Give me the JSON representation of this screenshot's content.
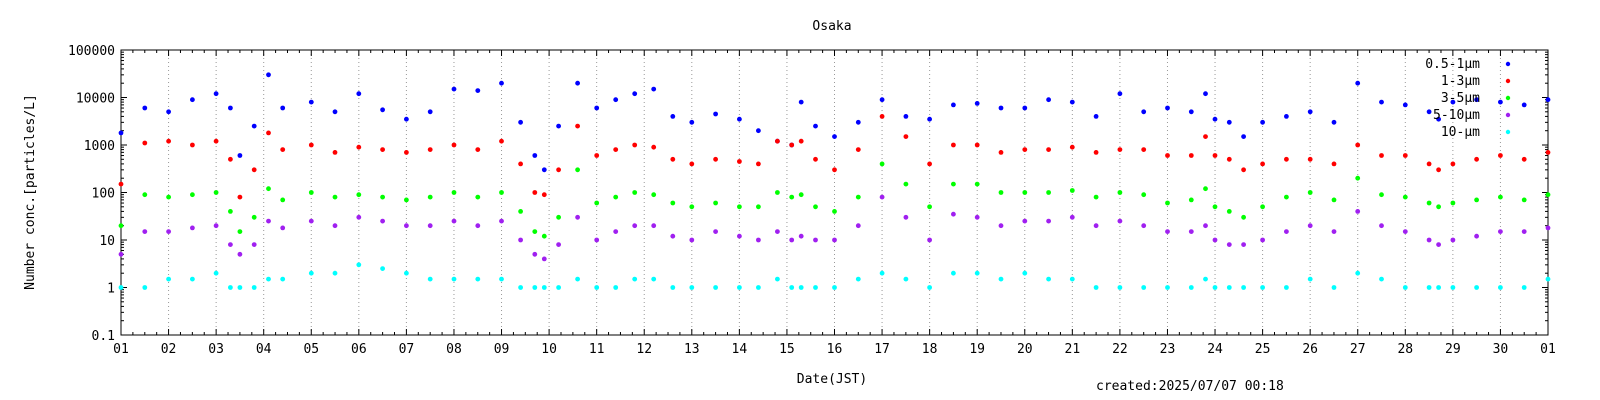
{
  "chart_data": {
    "type": "scatter",
    "title": "Osaka",
    "xlabel": "Date(JST)",
    "ylabel": "Number conc.[particles/L]",
    "created": "created:2025/07/07 00:18",
    "y_scale": "log",
    "ylim": [
      0.1,
      100000
    ],
    "xlim": [
      1,
      31
    ],
    "yticks": [
      {
        "value": 0.1,
        "label": "0.1"
      },
      {
        "value": 1,
        "label": "1"
      },
      {
        "value": 10,
        "label": "10"
      },
      {
        "value": 100,
        "label": "100"
      },
      {
        "value": 1000,
        "label": "1000"
      },
      {
        "value": 10000,
        "label": "10000"
      },
      {
        "value": 100000,
        "label": "100000"
      }
    ],
    "xticks": [
      "01",
      "02",
      "03",
      "04",
      "05",
      "06",
      "07",
      "08",
      "09",
      "10",
      "11",
      "12",
      "13",
      "14",
      "15",
      "16",
      "17",
      "18",
      "19",
      "20",
      "21",
      "22",
      "23",
      "24",
      "25",
      "26",
      "27",
      "28",
      "29",
      "30",
      "01"
    ],
    "legend_position": "top-right",
    "series": [
      {
        "name": "0.5-1μm",
        "color": "#0000ff",
        "x": [
          1,
          1.5,
          2,
          2.5,
          3,
          3.3,
          3.5,
          3.8,
          4.1,
          4.4,
          5,
          5.5,
          6,
          6.5,
          7,
          7.5,
          8,
          8.5,
          9,
          9.4,
          9.7,
          9.9,
          10.2,
          10.6,
          11,
          11.4,
          11.8,
          12.2,
          12.6,
          13,
          13.5,
          14,
          14.4,
          14.8,
          15.1,
          15.3,
          15.6,
          16,
          16.5,
          17,
          17.5,
          18,
          18.5,
          19,
          19.5,
          20,
          20.5,
          21,
          21.5,
          22,
          22.5,
          23,
          23.5,
          23.8,
          24,
          24.3,
          24.6,
          25,
          25.5,
          26,
          26.5,
          27,
          27.5,
          28,
          28.5,
          28.7,
          29,
          29.5,
          30,
          30.5,
          31
        ],
        "y": [
          1800,
          6000,
          5000,
          9000,
          12000,
          6000,
          600,
          2500,
          30000,
          6000,
          8000,
          5000,
          12000,
          5500,
          3500,
          5000,
          15000,
          14000,
          20000,
          3000,
          600,
          300,
          2500,
          20000,
          6000,
          9000,
          12000,
          15000,
          4000,
          3000,
          4500,
          3500,
          2000,
          1200,
          1000,
          8000,
          2500,
          1500,
          3000,
          9000,
          4000,
          3500,
          7000,
          7500,
          6000,
          6000,
          9000,
          8000,
          4000,
          12000,
          5000,
          6000,
          5000,
          12000,
          3500,
          3000,
          1500,
          3000,
          4000,
          5000,
          3000,
          20000,
          8000,
          7000,
          5000,
          3500,
          8000,
          9000,
          8000,
          7000,
          9000
        ]
      },
      {
        "name": "1-3μm",
        "color": "#ff0000",
        "x": [
          1,
          1.5,
          2,
          2.5,
          3,
          3.3,
          3.5,
          3.8,
          4.1,
          4.4,
          5,
          5.5,
          6,
          6.5,
          7,
          7.5,
          8,
          8.5,
          9,
          9.4,
          9.7,
          9.9,
          10.2,
          10.6,
          11,
          11.4,
          11.8,
          12.2,
          12.6,
          13,
          13.5,
          14,
          14.4,
          14.8,
          15.1,
          15.3,
          15.6,
          16,
          16.5,
          17,
          17.5,
          18,
          18.5,
          19,
          19.5,
          20,
          20.5,
          21,
          21.5,
          22,
          22.5,
          23,
          23.5,
          23.8,
          24,
          24.3,
          24.6,
          25,
          25.5,
          26,
          26.5,
          27,
          27.5,
          28,
          28.5,
          28.7,
          29,
          29.5,
          30,
          30.5,
          31
        ],
        "y": [
          150,
          1100,
          1200,
          1000,
          1200,
          500,
          80,
          300,
          1800,
          800,
          1000,
          700,
          900,
          800,
          700,
          800,
          1000,
          800,
          1200,
          400,
          100,
          90,
          300,
          2500,
          600,
          800,
          1000,
          900,
          500,
          400,
          500,
          450,
          400,
          1200,
          1000,
          1200,
          500,
          300,
          800,
          4000,
          1500,
          400,
          1000,
          1000,
          700,
          800,
          800,
          900,
          700,
          800,
          800,
          600,
          600,
          1500,
          600,
          500,
          300,
          400,
          500,
          500,
          400,
          1000,
          600,
          600,
          400,
          300,
          400,
          500,
          600,
          500,
          700
        ]
      },
      {
        "name": "3-5μm",
        "color": "#00ff00",
        "x": [
          1,
          1.5,
          2,
          2.5,
          3,
          3.3,
          3.5,
          3.8,
          4.1,
          4.4,
          5,
          5.5,
          6,
          6.5,
          7,
          7.5,
          8,
          8.5,
          9,
          9.4,
          9.7,
          9.9,
          10.2,
          10.6,
          11,
          11.4,
          11.8,
          12.2,
          12.6,
          13,
          13.5,
          14,
          14.4,
          14.8,
          15.1,
          15.3,
          15.6,
          16,
          16.5,
          17,
          17.5,
          18,
          18.5,
          19,
          19.5,
          20,
          20.5,
          21,
          21.5,
          22,
          22.5,
          23,
          23.5,
          23.8,
          24,
          24.3,
          24.6,
          25,
          25.5,
          26,
          26.5,
          27,
          27.5,
          28,
          28.5,
          28.7,
          29,
          29.5,
          30,
          30.5,
          31
        ],
        "y": [
          20,
          90,
          80,
          90,
          100,
          40,
          15,
          30,
          120,
          70,
          100,
          80,
          90,
          80,
          70,
          80,
          100,
          80,
          100,
          40,
          15,
          12,
          30,
          300,
          60,
          80,
          100,
          90,
          60,
          50,
          60,
          50,
          50,
          100,
          80,
          90,
          50,
          40,
          80,
          400,
          150,
          50,
          150,
          150,
          100,
          100,
          100,
          110,
          80,
          100,
          90,
          60,
          70,
          120,
          50,
          40,
          30,
          50,
          80,
          100,
          70,
          200,
          90,
          80,
          60,
          50,
          60,
          70,
          80,
          70,
          90
        ]
      },
      {
        "name": "5-10μm",
        "color": "#a020f0",
        "x": [
          1,
          1.5,
          2,
          2.5,
          3,
          3.3,
          3.5,
          3.8,
          4.1,
          4.4,
          5,
          5.5,
          6,
          6.5,
          7,
          7.5,
          8,
          8.5,
          9,
          9.4,
          9.7,
          9.9,
          10.2,
          10.6,
          11,
          11.4,
          11.8,
          12.2,
          12.6,
          13,
          13.5,
          14,
          14.4,
          14.8,
          15.1,
          15.3,
          15.6,
          16,
          16.5,
          17,
          17.5,
          18,
          18.5,
          19,
          19.5,
          20,
          20.5,
          21,
          21.5,
          22,
          22.5,
          23,
          23.5,
          23.8,
          24,
          24.3,
          24.6,
          25,
          25.5,
          26,
          26.5,
          27,
          27.5,
          28,
          28.5,
          28.7,
          29,
          29.5,
          30,
          30.5,
          31
        ],
        "y": [
          5,
          15,
          15,
          18,
          20,
          8,
          5,
          8,
          25,
          18,
          25,
          20,
          30,
          25,
          20,
          20,
          25,
          20,
          25,
          10,
          5,
          4,
          8,
          30,
          10,
          15,
          20,
          20,
          12,
          10,
          15,
          12,
          10,
          15,
          10,
          12,
          10,
          10,
          20,
          80,
          30,
          10,
          35,
          30,
          20,
          25,
          25,
          30,
          20,
          25,
          20,
          15,
          15,
          20,
          10,
          8,
          8,
          10,
          15,
          20,
          15,
          40,
          20,
          15,
          10,
          8,
          10,
          12,
          15,
          15,
          18
        ]
      },
      {
        "name": "10-μm",
        "color": "#00ffff",
        "x": [
          1,
          1.5,
          2,
          2.5,
          3,
          3.3,
          3.5,
          3.8,
          4.1,
          4.4,
          5,
          5.5,
          6,
          6.5,
          7,
          7.5,
          8,
          8.5,
          9,
          9.4,
          9.7,
          9.9,
          10.2,
          10.6,
          11,
          11.4,
          11.8,
          12.2,
          12.6,
          13,
          13.5,
          14,
          14.4,
          14.8,
          15.1,
          15.3,
          15.6,
          16,
          16.5,
          17,
          17.5,
          18,
          18.5,
          19,
          19.5,
          20,
          20.5,
          21,
          21.5,
          22,
          22.5,
          23,
          23.5,
          23.8,
          24,
          24.3,
          24.6,
          25,
          25.5,
          26,
          26.5,
          27,
          27.5,
          28,
          28.5,
          28.7,
          29,
          29.5,
          30,
          30.5,
          31
        ],
        "y": [
          1,
          1,
          1.5,
          1.5,
          2,
          1,
          1,
          1,
          1.5,
          1.5,
          2,
          2,
          3,
          2.5,
          2,
          1.5,
          1.5,
          1.5,
          1.5,
          1,
          1,
          1,
          1,
          1.5,
          1,
          1,
          1.5,
          1.5,
          1,
          1,
          1,
          1,
          1,
          1.5,
          1,
          1,
          1,
          1,
          1.5,
          2,
          1.5,
          1,
          2,
          2,
          1.5,
          2,
          1.5,
          1.5,
          1,
          1,
          1,
          1,
          1,
          1.5,
          1,
          1,
          1,
          1,
          1,
          1.5,
          1,
          2,
          1.5,
          1,
          1,
          1,
          1,
          1,
          1,
          1,
          1.5
        ]
      }
    ]
  }
}
